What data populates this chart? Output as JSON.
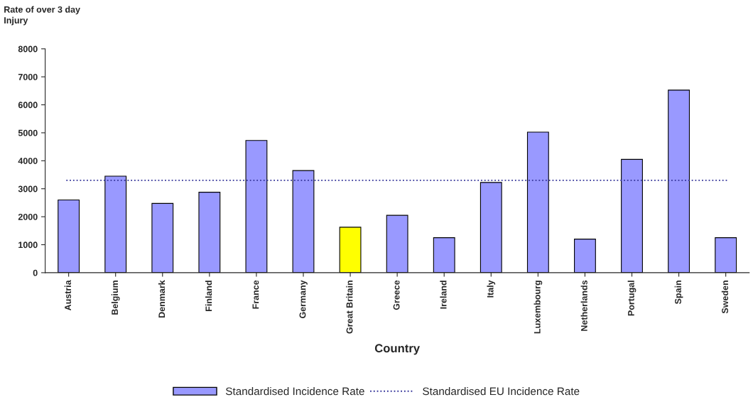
{
  "chart_data": {
    "type": "bar",
    "ylabel": "Rate of over 3 day\nInjury",
    "xlabel": "Country",
    "categories": [
      "Austria",
      "Belgium",
      "Denmark",
      "Finland",
      "France",
      "Germany",
      "Great Britain",
      "Greece",
      "Ireland",
      "Italy",
      "Luxembourg",
      "Netherlands",
      "Portugal",
      "Spain",
      "Sweden"
    ],
    "series": [
      {
        "name": "Standardised Incidence Rate",
        "color": "#9999ff",
        "colors": [
          "#9999ff",
          "#9999ff",
          "#9999ff",
          "#9999ff",
          "#9999ff",
          "#9999ff",
          "#ffff00",
          "#9999ff",
          "#9999ff",
          "#9999ff",
          "#9999ff",
          "#9999ff",
          "#9999ff",
          "#9999ff",
          "#9999ff"
        ],
        "values": [
          2600,
          3450,
          2475,
          2875,
          4725,
          3650,
          1625,
          2050,
          1250,
          3225,
          5025,
          1200,
          4050,
          6525,
          1250
        ]
      }
    ],
    "ref_lines": [
      {
        "axis": "y",
        "value": 3300,
        "label": "Standardised EU Incidence Rate",
        "color": "#333399",
        "line_style": "dotted"
      }
    ],
    "ylim": [
      0,
      8000
    ],
    "yticks": [
      0,
      1000,
      2000,
      3000,
      4000,
      5000,
      6000,
      7000,
      8000
    ],
    "grid": false,
    "legend": "bottom"
  }
}
